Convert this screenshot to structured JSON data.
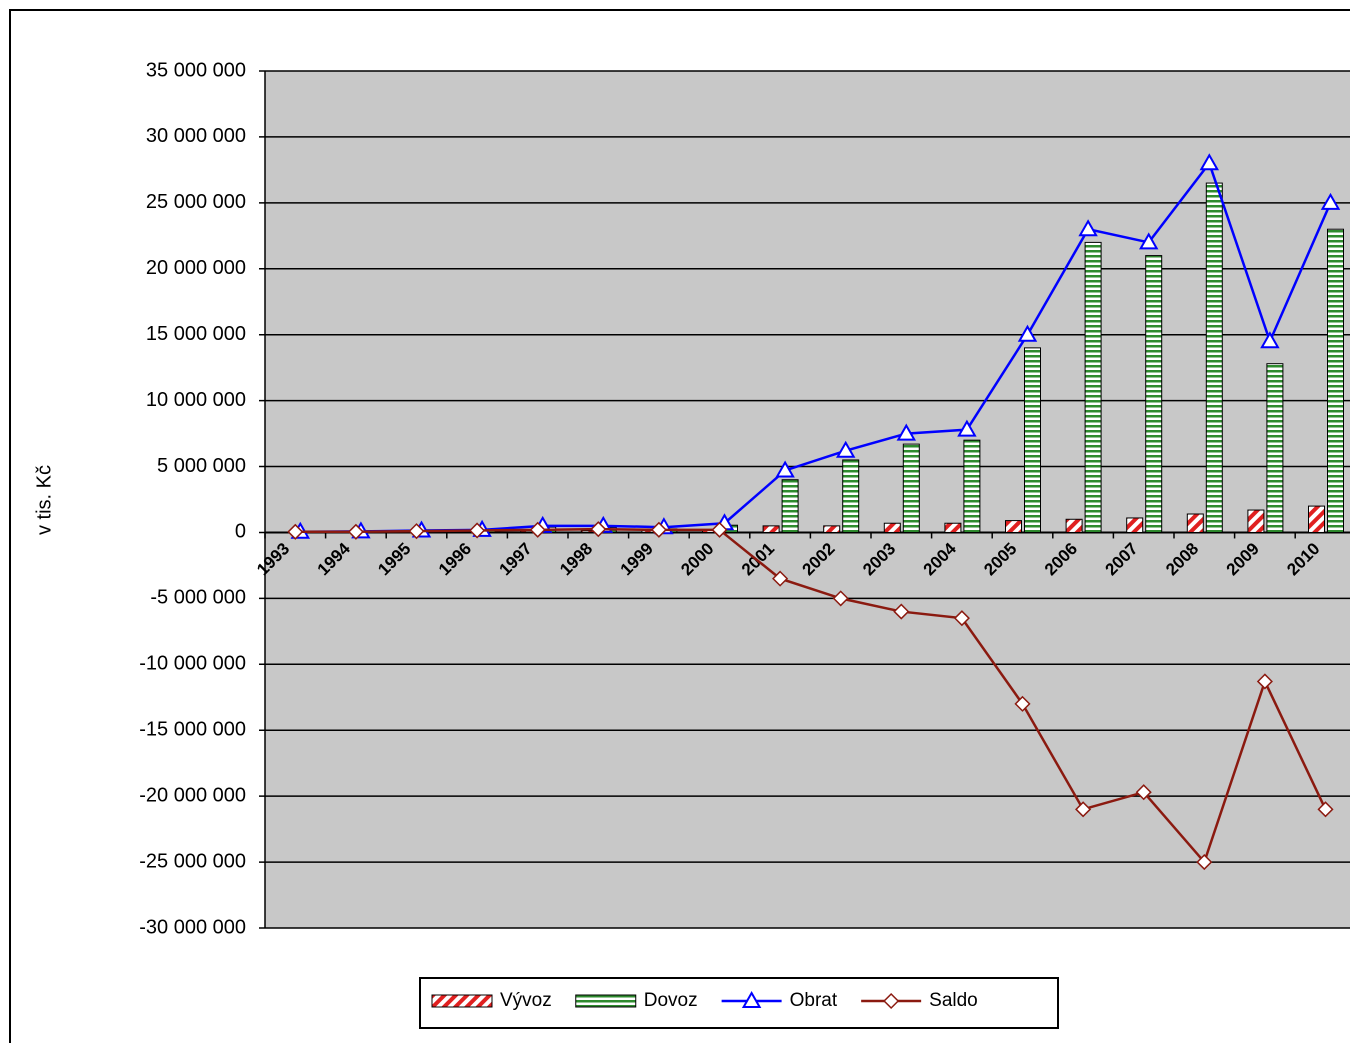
{
  "chart_data": {
    "type": "bar",
    "y_label": "v tis. Kč",
    "categories": [
      "1993",
      "1994",
      "1995",
      "1996",
      "1997",
      "1998",
      "1999",
      "2000",
      "2001",
      "2002",
      "2003",
      "2004",
      "2005",
      "2006",
      "2007",
      "2008",
      "2009",
      "2010"
    ],
    "series": [
      {
        "name": "Vývoz",
        "type": "bar",
        "color": "#e02020",
        "values": [
          20000,
          30000,
          50000,
          60000,
          100000,
          120000,
          130000,
          150000,
          500000,
          500000,
          700000,
          700000,
          900000,
          1000000,
          1100000,
          1400000,
          1700000,
          2000000
        ]
      },
      {
        "name": "Dovoz",
        "type": "bar",
        "color": "#2e8b2e",
        "values": [
          30000,
          50000,
          100000,
          140000,
          400000,
          380000,
          270000,
          550000,
          4000000,
          5500000,
          6700000,
          7000000,
          14000000,
          22000000,
          21000000,
          26500000,
          12800000,
          23000000
        ]
      },
      {
        "name": "Obrat",
        "type": "line",
        "color": "#0000ff",
        "marker": "triangle",
        "values": [
          50000,
          80000,
          150000,
          200000,
          500000,
          500000,
          400000,
          700000,
          4700000,
          6200000,
          7500000,
          7800000,
          15000000,
          23000000,
          22000000,
          28000000,
          14500000,
          25000000
        ]
      },
      {
        "name": "Saldo",
        "type": "line",
        "color": "#8b1a10",
        "marker": "diamond",
        "values": [
          50000,
          50000,
          100000,
          150000,
          200000,
          250000,
          200000,
          200000,
          -3500000,
          -5000000,
          -6000000,
          -6500000,
          -13000000,
          -21000000,
          -19700000,
          -25000000,
          -11300000,
          -21000000
        ]
      }
    ],
    "ylim": [
      -30000000,
      35000000
    ],
    "yticks": [
      {
        "value": -30000000,
        "label": "-30 000 000"
      },
      {
        "value": -25000000,
        "label": "-25 000 000"
      },
      {
        "value": -20000000,
        "label": "-20 000 000"
      },
      {
        "value": -15000000,
        "label": "-15 000 000"
      },
      {
        "value": -10000000,
        "label": "-10 000 000"
      },
      {
        "value": -5000000,
        "label": "-5 000 000"
      },
      0,
      {
        "value": 5000000,
        "label": "5 000 000"
      },
      {
        "value": 10000000,
        "label": "10 000 000"
      },
      {
        "value": 15000000,
        "label": "15 000 000"
      },
      {
        "value": 20000000,
        "label": "20 000 000"
      },
      {
        "value": 25000000,
        "label": "25 000 000"
      },
      {
        "value": 30000000,
        "label": "30 000 000"
      },
      {
        "value": 35000000,
        "label": "35 000 000"
      }
    ],
    "grid": true,
    "legend": "bottom"
  }
}
